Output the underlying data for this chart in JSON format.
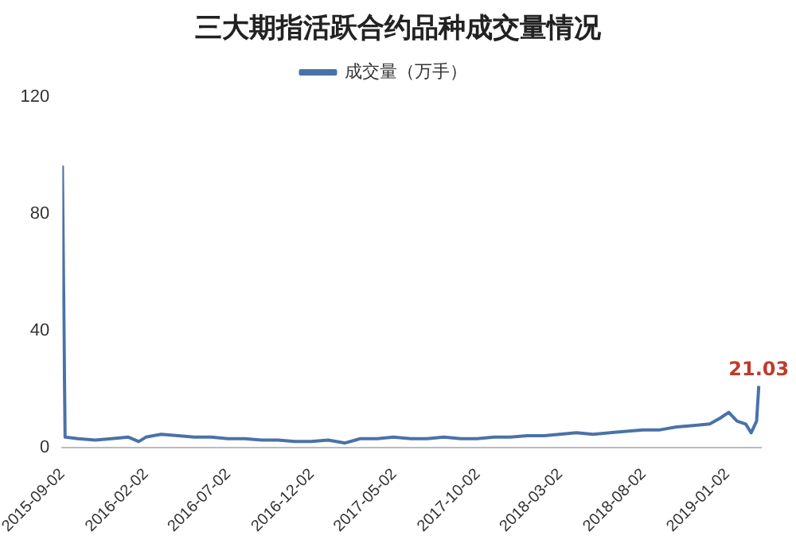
{
  "chart_data": {
    "type": "line",
    "title": "三大期指活跃合约品种成交量情况",
    "legend": "top",
    "grid": false,
    "marker": "none",
    "line_style": "solid",
    "x": [
      "2015-09-02",
      "2015-09-07",
      "2015-10-01",
      "2015-11-01",
      "2015-12-01",
      "2016-01-01",
      "2016-01-20",
      "2016-02-02",
      "2016-03-01",
      "2016-04-01",
      "2016-05-01",
      "2016-06-01",
      "2016-07-01",
      "2016-08-01",
      "2016-09-01",
      "2016-10-01",
      "2016-11-01",
      "2016-12-01",
      "2017-01-01",
      "2017-02-01",
      "2017-02-20",
      "2017-03-01",
      "2017-04-01",
      "2017-05-01",
      "2017-06-01",
      "2017-07-01",
      "2017-08-01",
      "2017-09-01",
      "2017-10-01",
      "2017-11-01",
      "2017-12-01",
      "2018-01-01",
      "2018-02-01",
      "2018-03-01",
      "2018-04-01",
      "2018-05-01",
      "2018-06-01",
      "2018-07-01",
      "2018-08-01",
      "2018-09-01",
      "2018-10-01",
      "2018-11-01",
      "2018-12-01",
      "2018-12-20",
      "2019-01-05",
      "2019-01-20",
      "2019-02-05",
      "2019-02-15",
      "2019-02-25",
      "2019-03-01"
    ],
    "series": [
      {
        "name": "成交量（万手）",
        "color": "#4a72a8",
        "values": [
          96.5,
          3.5,
          3,
          2.5,
          3,
          3.5,
          2,
          3.5,
          4.5,
          4,
          3.5,
          3.5,
          3,
          3,
          2.5,
          2.5,
          2,
          2,
          2.5,
          1.5,
          2.5,
          3,
          3,
          3.5,
          3,
          3,
          3.5,
          3,
          3,
          3.5,
          3.5,
          4,
          4,
          4.5,
          5,
          4.5,
          5,
          5.5,
          6,
          6,
          7,
          7.5,
          8,
          10,
          12,
          9,
          8,
          5,
          9,
          21.03
        ],
        "value_labels": [
          null,
          null,
          null,
          null,
          null,
          null,
          null,
          null,
          null,
          null,
          null,
          null,
          null,
          null,
          null,
          null,
          null,
          null,
          null,
          null,
          null,
          null,
          null,
          null,
          null,
          null,
          null,
          null,
          null,
          null,
          null,
          null,
          null,
          null,
          null,
          null,
          null,
          null,
          null,
          null,
          null,
          null,
          null,
          null,
          null,
          null,
          null,
          null,
          null,
          "21.03"
        ]
      }
    ],
    "xlim": [
      "2015-09-02",
      "2019-03-05"
    ],
    "xticks": [
      "2015-09-02",
      "2016-02-02",
      "2016-07-02",
      "2016-12-02",
      "2017-05-02",
      "2017-10-02",
      "2018-03-02",
      "2018-08-02",
      "2019-01-02"
    ],
    "ylim": [
      0,
      120
    ],
    "yticks": [
      0,
      40,
      80,
      120
    ]
  }
}
